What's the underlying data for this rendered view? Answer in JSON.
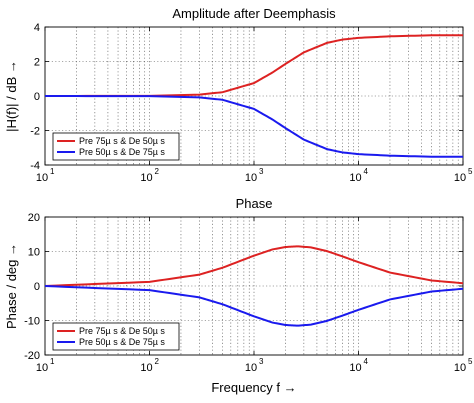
{
  "chart_data": [
    {
      "type": "line",
      "title": "Amplitude after Deemphasis",
      "ylabel": "|H(f)| / dB →",
      "xlabel": "",
      "xscale": "log",
      "xlim": [
        10,
        100000
      ],
      "ylim": [
        -4,
        4
      ],
      "grid": true,
      "legend_position": "bottom-left",
      "xtick_decades": [
        1,
        2,
        3,
        4,
        5
      ],
      "yticks": [
        -4,
        -2,
        0,
        2,
        4
      ],
      "series": [
        {
          "name": "Pre 75µ s & De 50µ s",
          "color": "#dd2222",
          "x": [
            10,
            100,
            300,
            500,
            1000,
            1500,
            2000,
            3000,
            5000,
            7000,
            10000,
            20000,
            50000,
            100000
          ],
          "y": [
            0.0,
            0.01,
            0.08,
            0.22,
            0.75,
            1.36,
            1.86,
            2.53,
            3.08,
            3.27,
            3.37,
            3.46,
            3.52,
            3.52
          ]
        },
        {
          "name": "Pre 50µ s & De 75µ s",
          "color": "#1a1aee",
          "x": [
            10,
            100,
            300,
            500,
            1000,
            1500,
            2000,
            3000,
            5000,
            7000,
            10000,
            20000,
            50000,
            100000
          ],
          "y": [
            0.0,
            -0.01,
            -0.08,
            -0.22,
            -0.75,
            -1.36,
            -1.86,
            -2.53,
            -3.08,
            -3.27,
            -3.37,
            -3.46,
            -3.52,
            -3.52
          ]
        }
      ]
    },
    {
      "type": "line",
      "title": "Phase",
      "ylabel": "Phase / deg →",
      "xlabel": "Frequency f →",
      "xscale": "log",
      "xlim": [
        10,
        100000
      ],
      "ylim": [
        -20,
        20
      ],
      "grid": true,
      "legend_position": "bottom-left",
      "xtick_decades": [
        1,
        2,
        3,
        4,
        5
      ],
      "yticks": [
        -20,
        -10,
        0,
        10,
        20
      ],
      "series": [
        {
          "name": "Pre 75µ s & De 50µ s",
          "color": "#dd2222",
          "x": [
            10,
            100,
            300,
            500,
            1000,
            1500,
            2000,
            2600,
            3500,
            5000,
            7000,
            10000,
            20000,
            50000,
            100000
          ],
          "y": [
            0.0,
            1.2,
            3.3,
            5.3,
            8.8,
            10.6,
            11.3,
            11.5,
            11.2,
            10.1,
            8.6,
            6.9,
            3.9,
            1.6,
            0.8
          ]
        },
        {
          "name": "Pre 50µ s & De 75µ s",
          "color": "#1a1aee",
          "x": [
            10,
            100,
            300,
            500,
            1000,
            1500,
            2000,
            2600,
            3500,
            5000,
            7000,
            10000,
            20000,
            50000,
            100000
          ],
          "y": [
            0.0,
            -1.2,
            -3.3,
            -5.3,
            -8.8,
            -10.6,
            -11.3,
            -11.5,
            -11.2,
            -10.1,
            -8.6,
            -6.9,
            -3.9,
            -1.6,
            -0.8
          ]
        }
      ]
    }
  ]
}
